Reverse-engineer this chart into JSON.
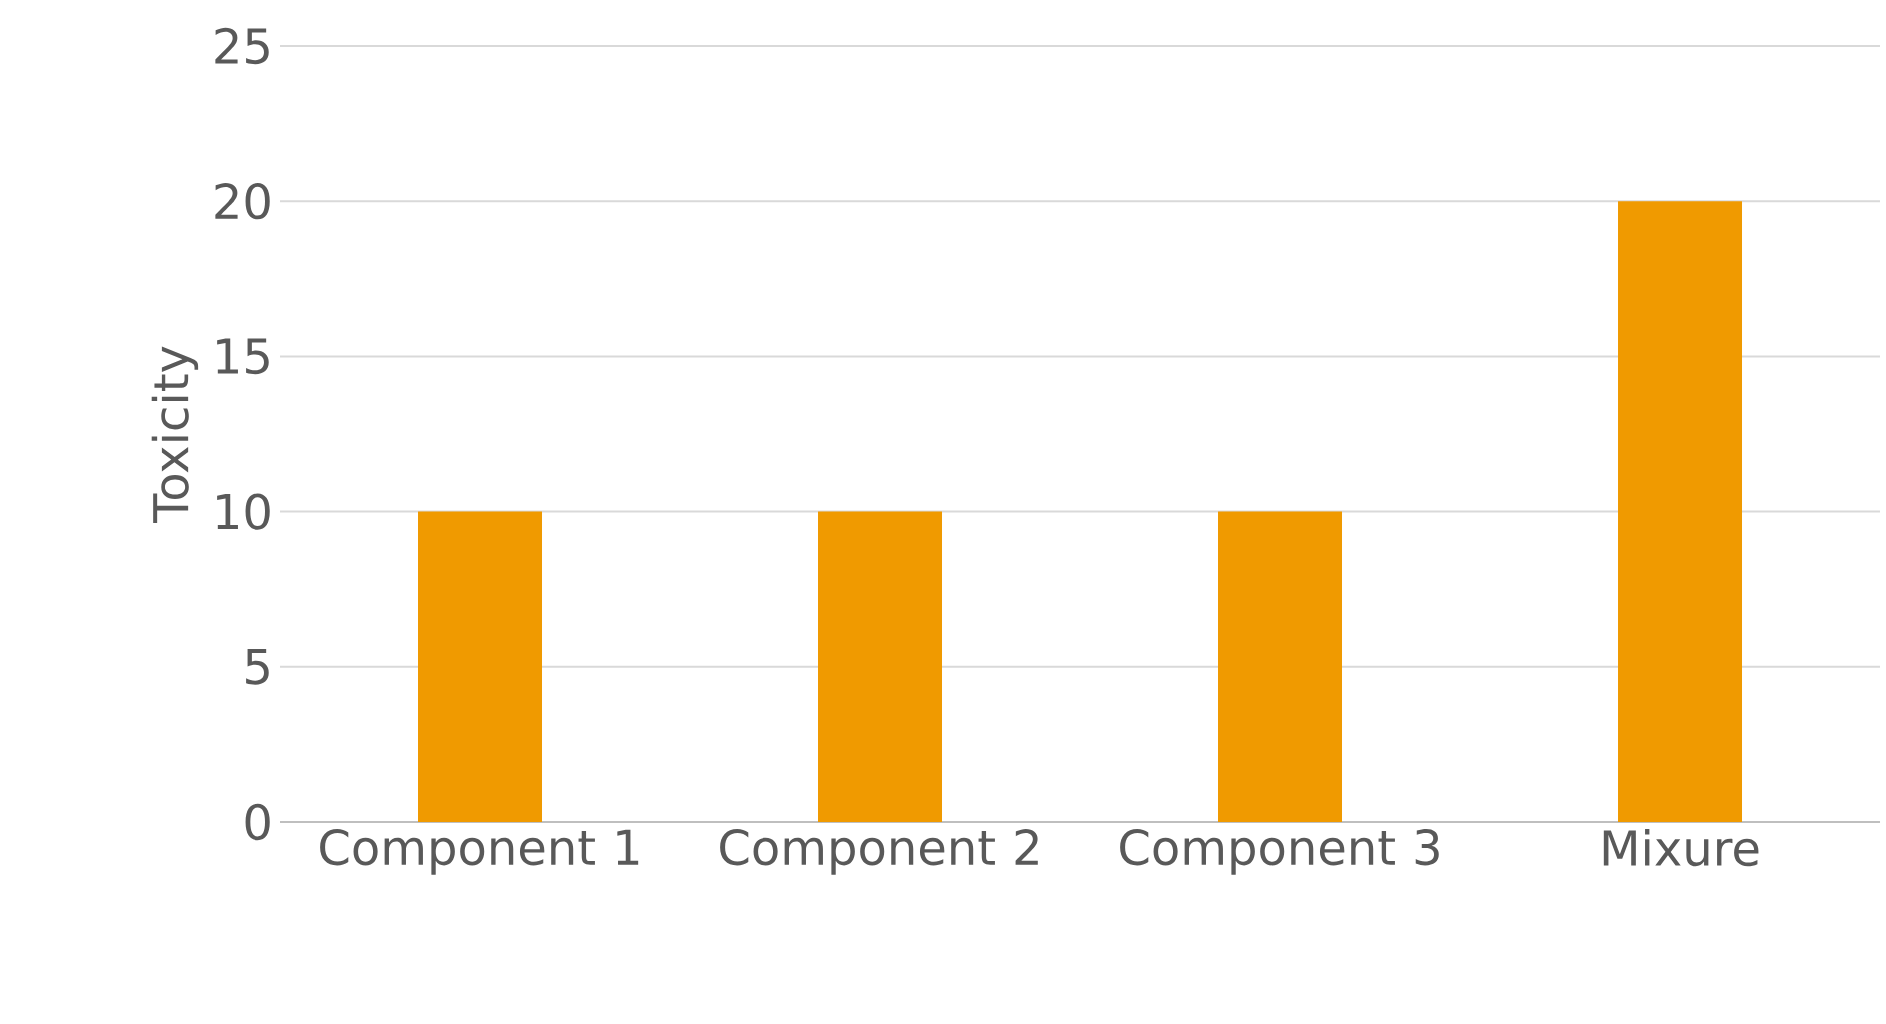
{
  "chart_data": {
    "type": "bar",
    "ylabel": "Toxicity",
    "categories": [
      "Component 1",
      "Component 2",
      "Component 3",
      "Mixure"
    ],
    "values": [
      10,
      10,
      10,
      20
    ],
    "color": "#f09a00",
    "ylim": [
      0,
      25
    ],
    "yticks": [
      0,
      5,
      10,
      15,
      20,
      25
    ],
    "grid": "y"
  }
}
